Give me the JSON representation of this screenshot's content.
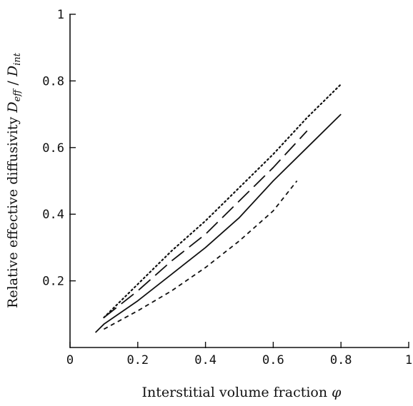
{
  "chart_data": {
    "type": "line",
    "xlabel": "Interstitial volume fraction φ",
    "ylabel": "Relative effective diffusivity D_eff / D_int",
    "xlim": [
      0,
      1
    ],
    "ylim": [
      0,
      1
    ],
    "x_ticks": [
      "0",
      "0.2",
      "0.4",
      "0.6",
      "0.8",
      "1"
    ],
    "y_ticks": [
      "0.2",
      "0.4",
      "0.6",
      "0.8",
      "1"
    ],
    "x_tick_values": [
      0,
      0.2,
      0.4,
      0.6,
      0.8,
      1
    ],
    "y_tick_values": [
      0.2,
      0.4,
      0.6,
      0.8,
      1
    ],
    "series": [
      {
        "style": "dotted",
        "x": [
          0.1,
          0.2,
          0.3,
          0.4,
          0.5,
          0.6,
          0.7,
          0.8
        ],
        "y": [
          0.09,
          0.19,
          0.29,
          0.38,
          0.48,
          0.58,
          0.69,
          0.79
        ]
      },
      {
        "style": "long-dashed",
        "x": [
          0.1,
          0.2,
          0.3,
          0.4,
          0.5,
          0.6,
          0.7
        ],
        "y": [
          0.09,
          0.17,
          0.26,
          0.34,
          0.44,
          0.54,
          0.65
        ]
      },
      {
        "style": "solid",
        "x": [
          0.075,
          0.1,
          0.2,
          0.3,
          0.4,
          0.5,
          0.6,
          0.7,
          0.8
        ],
        "y": [
          0.045,
          0.07,
          0.14,
          0.22,
          0.3,
          0.39,
          0.5,
          0.6,
          0.7
        ]
      },
      {
        "style": "short-dashed",
        "x": [
          0.1,
          0.2,
          0.3,
          0.4,
          0.5,
          0.6,
          0.67
        ],
        "y": [
          0.055,
          0.11,
          0.17,
          0.24,
          0.32,
          0.41,
          0.5
        ]
      }
    ]
  }
}
